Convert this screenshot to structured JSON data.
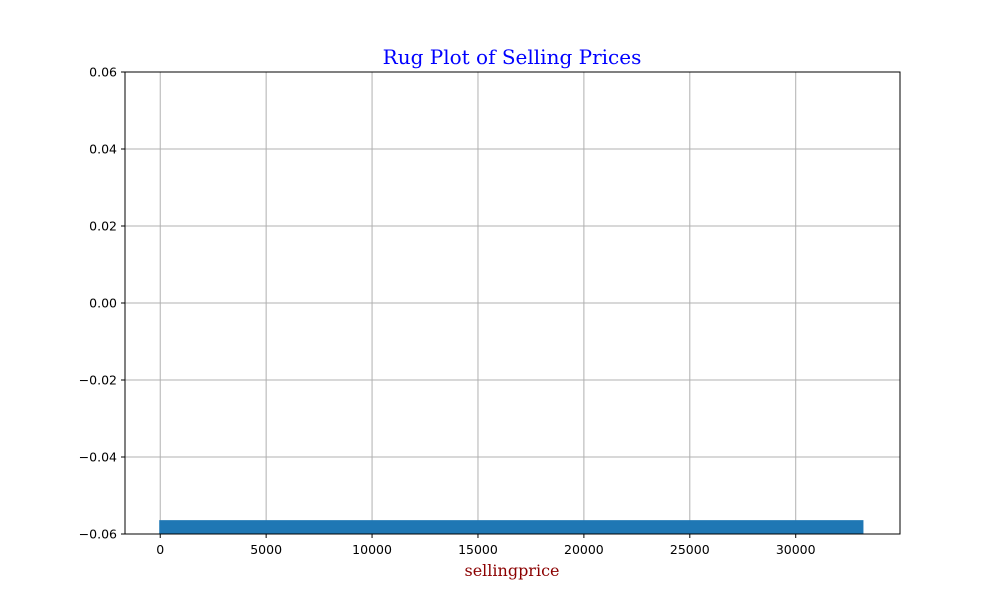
{
  "chart_data": {
    "type": "rug",
    "title": "Rug Plot of Selling Prices",
    "xlabel": "sellingprice",
    "ylabel": "",
    "xlim": [
      -1663,
      34923
    ],
    "ylim": [
      -0.06,
      0.06
    ],
    "x_ticks": [
      0,
      5000,
      10000,
      15000,
      20000,
      25000,
      30000
    ],
    "y_ticks": [
      0.06,
      0.04,
      0.02,
      0.0,
      -0.02,
      -0.04,
      -0.06
    ],
    "y_tick_labels": [
      "0.06",
      "0.04",
      "0.02",
      "0.00",
      "−0.02",
      "−0.04",
      "−0.06"
    ],
    "rug_range": [
      0,
      33150
    ],
    "rug_height_fraction": 0.03,
    "grid": true,
    "colors": {
      "title": "#0000ff",
      "xlabel": "#8b0000",
      "rug": "#1f77b4",
      "grid": "#b0b0b0"
    }
  }
}
